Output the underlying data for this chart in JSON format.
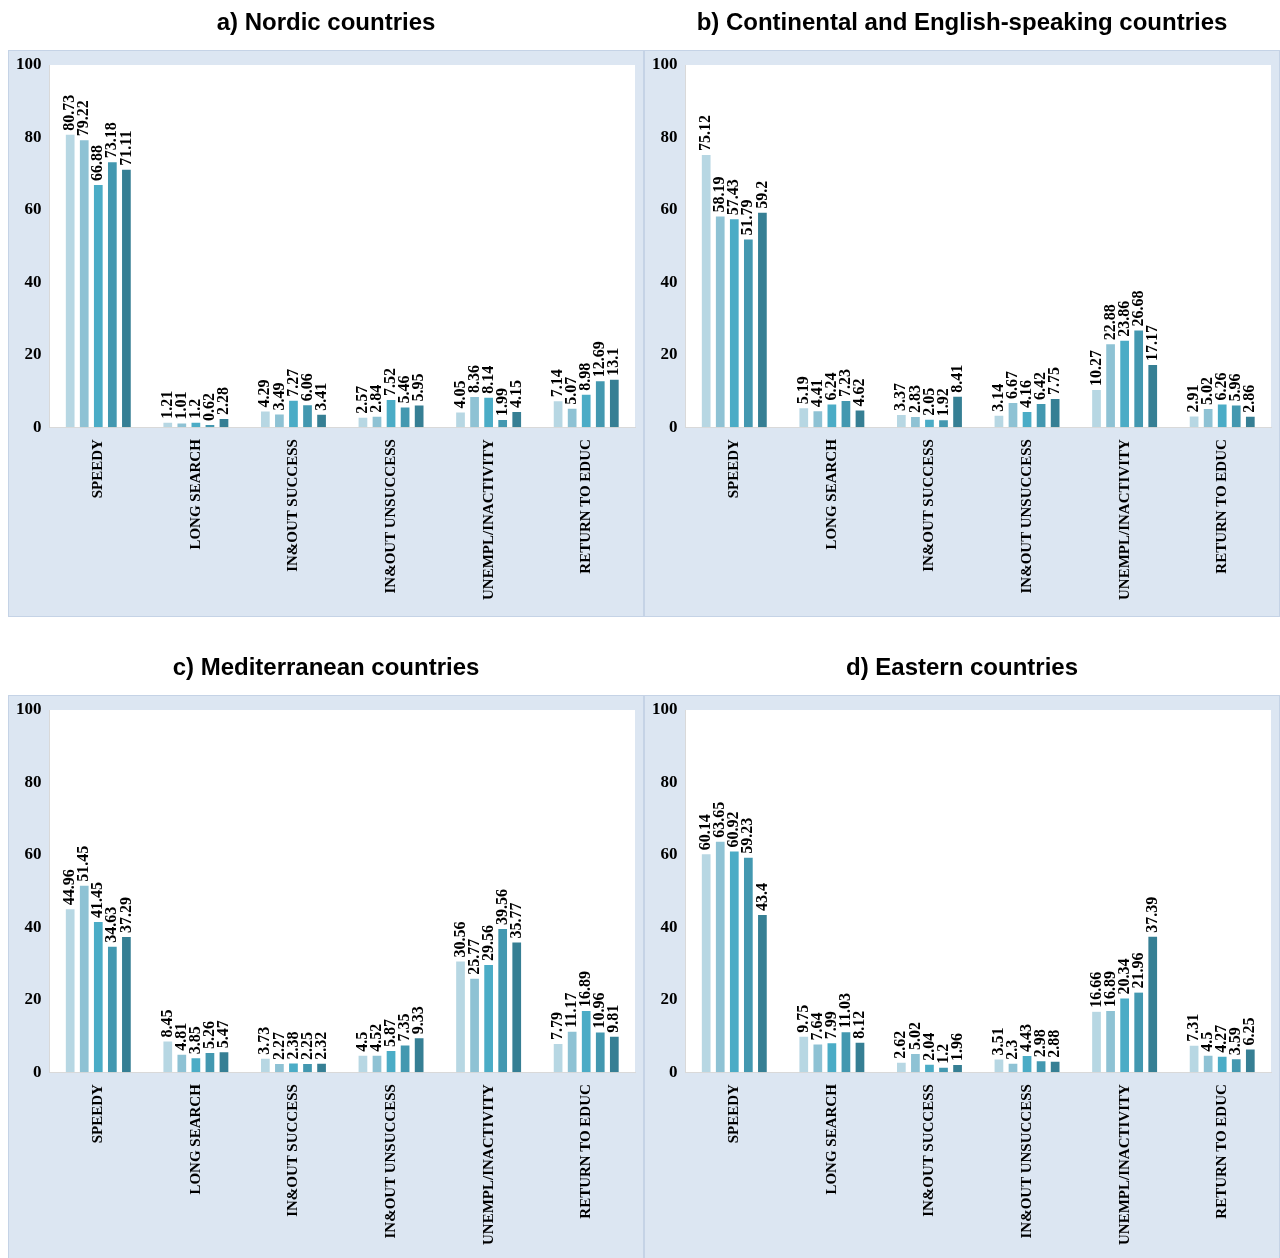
{
  "chart_data": [
    {
      "type": "bar",
      "title": "a) Nordic countries",
      "categories": [
        "SPEEDY",
        "LONG SEARCH",
        "IN&OUT SUCCESS",
        "IN&OUT UNSUCCESS",
        "UNEMPL/INACTIVITY",
        "RETURN TO EDUC"
      ],
      "ylim": [
        0,
        100
      ],
      "yticks": [
        0,
        20,
        40,
        60,
        80,
        100
      ],
      "data_labels": true,
      "series": [
        {
          "color": "#b7d7e3",
          "values": [
            80.73,
            1.21,
            4.29,
            2.57,
            4.05,
            7.14
          ]
        },
        {
          "color": "#8ec2d4",
          "values": [
            79.22,
            1.01,
            3.49,
            2.84,
            8.36,
            5.07
          ]
        },
        {
          "color": "#4bacc6",
          "values": [
            66.88,
            1.2,
            7.27,
            7.52,
            8.14,
            8.98
          ]
        },
        {
          "color": "#4398b0",
          "values": [
            73.18,
            0.62,
            6.06,
            5.46,
            1.99,
            12.69
          ]
        },
        {
          "color": "#367f94",
          "values": [
            71.11,
            2.28,
            3.41,
            5.95,
            4.15,
            13.1
          ]
        }
      ]
    },
    {
      "type": "bar",
      "title": "b) Continental and English-speaking countries",
      "categories": [
        "SPEEDY",
        "LONG SEARCH",
        "IN&OUT SUCCESS",
        "IN&OUT UNSUCCESS",
        "UNEMPL/INACTIVITY",
        "RETURN TO EDUC"
      ],
      "ylim": [
        0,
        100
      ],
      "yticks": [
        0,
        20,
        40,
        60,
        80,
        100
      ],
      "data_labels": true,
      "series": [
        {
          "color": "#b7d7e3",
          "values": [
            75.12,
            5.19,
            3.37,
            3.14,
            10.27,
            2.91
          ]
        },
        {
          "color": "#8ec2d4",
          "values": [
            58.19,
            4.41,
            2.83,
            6.67,
            22.88,
            5.02
          ]
        },
        {
          "color": "#4bacc6",
          "values": [
            57.43,
            6.24,
            2.05,
            4.16,
            23.86,
            6.26
          ]
        },
        {
          "color": "#4398b0",
          "values": [
            51.79,
            7.23,
            1.92,
            6.42,
            26.68,
            5.96
          ]
        },
        {
          "color": "#367f94",
          "values": [
            59.2,
            4.62,
            8.41,
            7.75,
            17.17,
            2.86
          ]
        }
      ]
    },
    {
      "type": "bar",
      "title": "c) Mediterranean countries",
      "categories": [
        "SPEEDY",
        "LONG SEARCH",
        "IN&OUT SUCCESS",
        "IN&OUT UNSUCCESS",
        "UNEMPL/INACTIVITY",
        "RETURN TO EDUC"
      ],
      "ylim": [
        0,
        100
      ],
      "yticks": [
        0,
        20,
        40,
        60,
        80,
        100
      ],
      "data_labels": true,
      "series": [
        {
          "color": "#b7d7e3",
          "values": [
            44.96,
            8.45,
            3.73,
            4.5,
            30.56,
            7.79
          ]
        },
        {
          "color": "#8ec2d4",
          "values": [
            51.45,
            4.81,
            2.27,
            4.52,
            25.77,
            11.17
          ]
        },
        {
          "color": "#4bacc6",
          "values": [
            41.45,
            3.85,
            2.38,
            5.87,
            29.56,
            16.89
          ]
        },
        {
          "color": "#4398b0",
          "values": [
            34.63,
            5.26,
            2.25,
            7.35,
            39.56,
            10.96
          ]
        },
        {
          "color": "#367f94",
          "values": [
            37.29,
            5.47,
            2.32,
            9.33,
            35.77,
            9.81
          ]
        }
      ]
    },
    {
      "type": "bar",
      "title": "d) Eastern countries",
      "categories": [
        "SPEEDY",
        "LONG SEARCH",
        "IN&OUT SUCCESS",
        "IN&OUT UNSUCCESS",
        "UNEMPL/INACTIVITY",
        "RETURN TO EDUC"
      ],
      "ylim": [
        0,
        100
      ],
      "yticks": [
        0,
        20,
        40,
        60,
        80,
        100
      ],
      "data_labels": true,
      "series": [
        {
          "color": "#b7d7e3",
          "values": [
            60.14,
            9.75,
            2.62,
            3.51,
            16.66,
            7.31
          ]
        },
        {
          "color": "#8ec2d4",
          "values": [
            63.65,
            7.64,
            5.02,
            2.3,
            16.89,
            4.5
          ]
        },
        {
          "color": "#4bacc6",
          "values": [
            60.92,
            7.99,
            2.04,
            4.43,
            20.34,
            4.27
          ]
        },
        {
          "color": "#4398b0",
          "values": [
            59.23,
            11.03,
            1.2,
            2.98,
            21.96,
            3.59
          ]
        },
        {
          "color": "#367f94",
          "values": [
            43.4,
            8.12,
            1.96,
            2.88,
            37.39,
            6.25
          ]
        }
      ]
    }
  ]
}
